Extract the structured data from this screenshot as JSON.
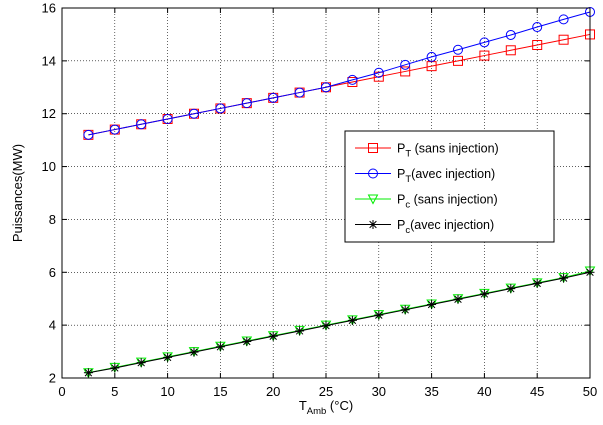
{
  "chart_data": {
    "type": "line",
    "xlabel": {
      "main": "T",
      "sub": "Amb",
      "rest": " (°C)"
    },
    "ylabel": "Puissances(MW)",
    "xlim": [
      0,
      50
    ],
    "ylim": [
      2,
      16
    ],
    "xticks": [
      0,
      5,
      10,
      15,
      20,
      25,
      30,
      35,
      40,
      45,
      50
    ],
    "yticks": [
      2,
      4,
      6,
      8,
      10,
      12,
      14,
      16
    ],
    "grid": true,
    "legend_position": "center-right",
    "x": [
      2.5,
      5,
      7.5,
      10,
      12.5,
      15,
      17.5,
      20,
      22.5,
      25,
      27.5,
      30,
      32.5,
      35,
      37.5,
      40,
      42.5,
      45,
      47.5,
      50
    ],
    "series": [
      {
        "name": "P_T (sans injection)",
        "label": {
          "main": "P",
          "sub": "T",
          "rest": " (sans injection)"
        },
        "color": "#ff0000",
        "marker": "square",
        "values": [
          11.2,
          11.4,
          11.6,
          11.8,
          12.0,
          12.2,
          12.4,
          12.6,
          12.8,
          13.0,
          13.2,
          13.4,
          13.6,
          13.8,
          14.0,
          14.2,
          14.4,
          14.6,
          14.8,
          15.0
        ]
      },
      {
        "name": "P_T(avec injection)",
        "label": {
          "main": "P",
          "sub": "T",
          "rest": "(avec injection)"
        },
        "color": "#0000ff",
        "marker": "circle",
        "values": [
          11.2,
          11.4,
          11.6,
          11.8,
          12.0,
          12.2,
          12.4,
          12.6,
          12.8,
          13.0,
          13.28,
          13.55,
          13.85,
          14.15,
          14.42,
          14.7,
          14.98,
          15.28,
          15.57,
          15.85
        ]
      },
      {
        "name": "P_c (sans injection)",
        "label": {
          "main": "P",
          "sub": "c",
          "rest": " (sans injection)"
        },
        "color": "#00ee00",
        "marker": "triangle-down",
        "values": [
          2.2,
          2.4,
          2.6,
          2.8,
          3.0,
          3.2,
          3.4,
          3.6,
          3.8,
          4.0,
          4.2,
          4.4,
          4.6,
          4.8,
          5.0,
          5.2,
          5.4,
          5.6,
          5.8,
          6.05
        ]
      },
      {
        "name": "P_c(avec injection)",
        "label": {
          "main": "P",
          "sub": "c",
          "rest": "(avec injection)"
        },
        "color": "#000000",
        "marker": "star",
        "values": [
          2.2,
          2.38,
          2.58,
          2.78,
          2.98,
          3.18,
          3.38,
          3.58,
          3.78,
          3.98,
          4.18,
          4.38,
          4.58,
          4.78,
          4.98,
          5.18,
          5.38,
          5.58,
          5.78,
          6.0
        ]
      }
    ]
  }
}
